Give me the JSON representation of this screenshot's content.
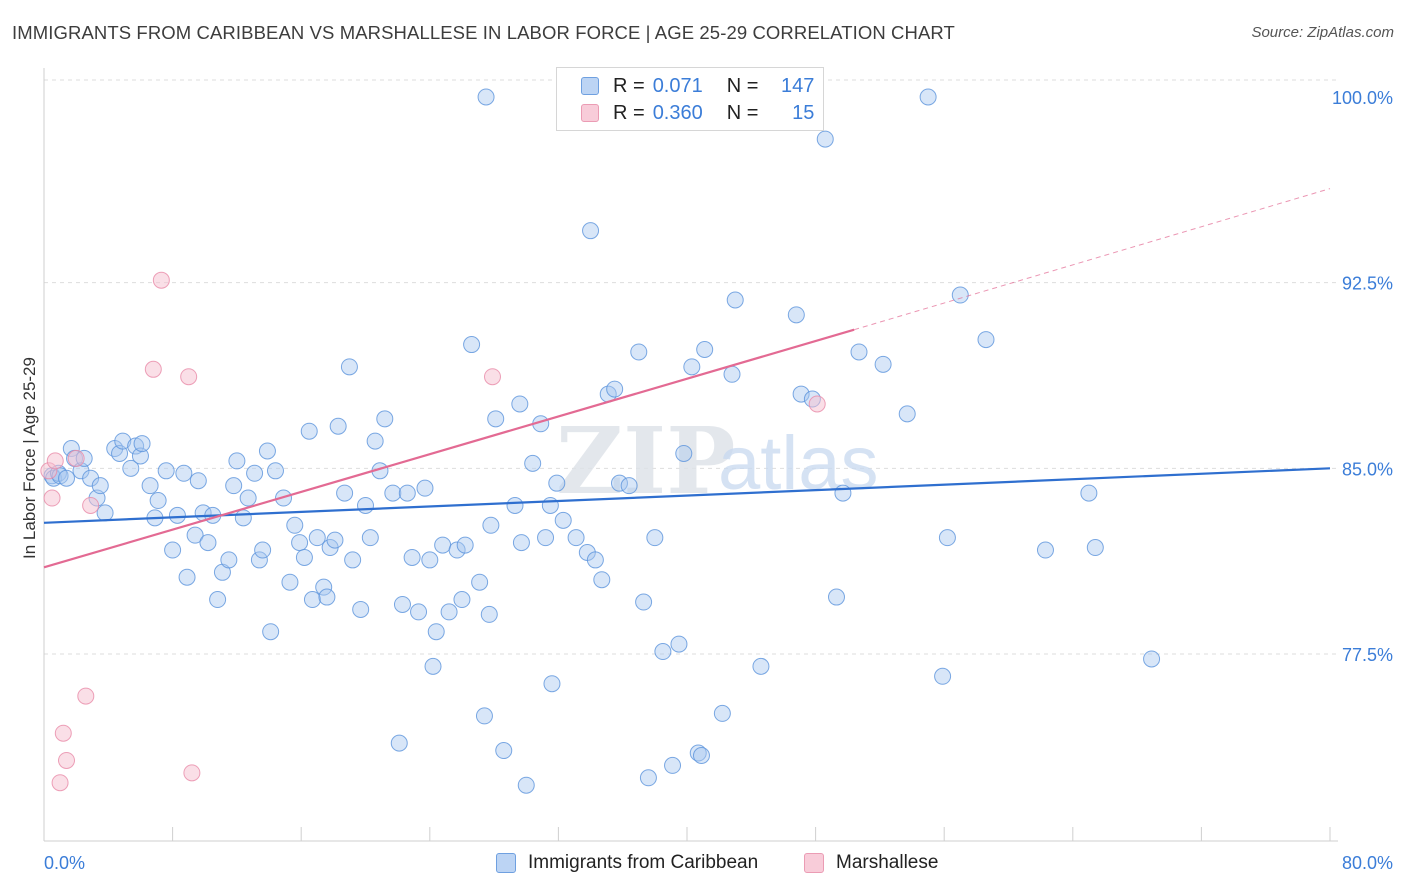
{
  "title": "IMMIGRANTS FROM CARIBBEAN VS MARSHALLESE IN LABOR FORCE | AGE 25-29 CORRELATION CHART",
  "source": "Source: ZipAtlas.com",
  "watermark": {
    "zip": "ZIP",
    "atlas": "atlas"
  },
  "colors": {
    "blue_fill": "#a9c8f0",
    "blue_stroke": "#5b93dc",
    "blue_line": "#2f6fcf",
    "pink_fill": "#f6bfd0",
    "pink_stroke": "#e88aa8",
    "pink_line": "#e36a93",
    "axis_text": "#3b7dd8",
    "grid": "#dddddd"
  },
  "legend": {
    "rows": [
      {
        "series": "Immigrants from Caribbean",
        "r_label": "R =",
        "r_value": "0.071",
        "n_label": "N =",
        "n_value": "147"
      },
      {
        "series": "Marshallese",
        "r_label": "R =",
        "r_value": "0.360",
        "n_label": "N =",
        "n_value": "15"
      }
    ]
  },
  "chart_data": {
    "type": "scatter",
    "title": "IMMIGRANTS FROM CARIBBEAN VS MARSHALLESE IN LABOR FORCE | AGE 25-29 CORRELATION CHART",
    "xlabel": "",
    "ylabel": "In Labor Force | Age 25-29",
    "xlim": [
      0,
      80
    ],
    "ylim": [
      70.5,
      101
    ],
    "x_tick_labels": [
      "0.0%",
      "80.0%"
    ],
    "y_ticks": [
      77.5,
      85.0,
      92.5,
      100.0
    ],
    "y_tick_labels": [
      "77.5%",
      "85.0%",
      "92.5%",
      "100.0%"
    ],
    "grid": true,
    "legend_position": "top-center",
    "series": [
      {
        "name": "Immigrants from Caribbean",
        "trend": {
          "x": [
            0,
            80
          ],
          "y": [
            82.8,
            85.0
          ]
        },
        "points": [
          [
            0.5,
            84.7
          ],
          [
            0.6,
            84.6
          ],
          [
            0.9,
            84.8
          ],
          [
            1.0,
            84.7
          ],
          [
            1.4,
            84.6
          ],
          [
            1.7,
            85.8
          ],
          [
            1.9,
            85.4
          ],
          [
            2.3,
            84.9
          ],
          [
            2.5,
            85.4
          ],
          [
            2.9,
            84.6
          ],
          [
            3.3,
            83.8
          ],
          [
            3.5,
            84.3
          ],
          [
            3.8,
            83.2
          ],
          [
            4.4,
            85.8
          ],
          [
            4.7,
            85.6
          ],
          [
            4.9,
            86.1
          ],
          [
            5.4,
            85.0
          ],
          [
            5.7,
            85.9
          ],
          [
            6.0,
            85.5
          ],
          [
            6.1,
            86.0
          ],
          [
            6.6,
            84.3
          ],
          [
            6.9,
            83.0
          ],
          [
            7.1,
            83.7
          ],
          [
            7.6,
            84.9
          ],
          [
            8.0,
            81.7
          ],
          [
            8.3,
            83.1
          ],
          [
            8.7,
            84.8
          ],
          [
            8.9,
            80.6
          ],
          [
            9.4,
            82.3
          ],
          [
            9.6,
            84.5
          ],
          [
            9.9,
            83.2
          ],
          [
            10.2,
            82.0
          ],
          [
            10.5,
            83.1
          ],
          [
            10.8,
            79.7
          ],
          [
            11.1,
            80.8
          ],
          [
            11.5,
            81.3
          ],
          [
            11.8,
            84.3
          ],
          [
            12.0,
            85.3
          ],
          [
            12.4,
            83.0
          ],
          [
            12.7,
            83.8
          ],
          [
            13.1,
            84.8
          ],
          [
            13.4,
            81.3
          ],
          [
            13.6,
            81.7
          ],
          [
            13.9,
            85.7
          ],
          [
            14.1,
            78.4
          ],
          [
            14.4,
            84.9
          ],
          [
            14.9,
            83.8
          ],
          [
            15.3,
            80.4
          ],
          [
            15.6,
            82.7
          ],
          [
            15.9,
            82.0
          ],
          [
            16.2,
            81.4
          ],
          [
            16.5,
            86.5
          ],
          [
            16.7,
            79.7
          ],
          [
            17.0,
            82.2
          ],
          [
            17.4,
            80.2
          ],
          [
            17.6,
            79.8
          ],
          [
            17.8,
            81.8
          ],
          [
            18.1,
            82.1
          ],
          [
            18.3,
            86.7
          ],
          [
            18.7,
            84.0
          ],
          [
            19.0,
            89.1
          ],
          [
            19.2,
            81.3
          ],
          [
            19.7,
            79.3
          ],
          [
            20.0,
            83.5
          ],
          [
            20.3,
            82.2
          ],
          [
            20.6,
            86.1
          ],
          [
            20.9,
            84.9
          ],
          [
            21.2,
            87.0
          ],
          [
            21.7,
            84.0
          ],
          [
            22.1,
            73.9
          ],
          [
            22.3,
            79.5
          ],
          [
            22.6,
            84.0
          ],
          [
            22.9,
            81.4
          ],
          [
            23.3,
            79.2
          ],
          [
            23.7,
            84.2
          ],
          [
            24.0,
            81.3
          ],
          [
            24.4,
            78.4
          ],
          [
            24.2,
            77.0
          ],
          [
            24.8,
            81.9
          ],
          [
            25.2,
            79.2
          ],
          [
            25.7,
            81.7
          ],
          [
            26.0,
            79.7
          ],
          [
            26.2,
            81.9
          ],
          [
            26.6,
            90.0
          ],
          [
            27.1,
            80.4
          ],
          [
            27.4,
            75.0
          ],
          [
            27.7,
            79.1
          ],
          [
            27.8,
            82.7
          ],
          [
            28.1,
            87.0
          ],
          [
            28.6,
            73.6
          ],
          [
            29.3,
            83.5
          ],
          [
            29.6,
            87.6
          ],
          [
            29.7,
            82.0
          ],
          [
            30.0,
            72.2
          ],
          [
            30.4,
            85.2
          ],
          [
            30.9,
            86.8
          ],
          [
            31.2,
            82.2
          ],
          [
            31.6,
            76.3
          ],
          [
            31.5,
            83.5
          ],
          [
            31.9,
            84.4
          ],
          [
            32.3,
            82.9
          ],
          [
            33.1,
            82.2
          ],
          [
            33.8,
            81.6
          ],
          [
            34.0,
            94.6
          ],
          [
            34.3,
            81.3
          ],
          [
            34.7,
            80.5
          ],
          [
            35.1,
            88.0
          ],
          [
            35.5,
            88.2
          ],
          [
            35.8,
            84.4
          ],
          [
            36.4,
            84.3
          ],
          [
            37.0,
            89.7
          ],
          [
            37.3,
            79.6
          ],
          [
            37.6,
            72.5
          ],
          [
            38.0,
            82.2
          ],
          [
            38.5,
            77.6
          ],
          [
            39.1,
            73.0
          ],
          [
            39.5,
            77.9
          ],
          [
            39.8,
            85.6
          ],
          [
            40.3,
            89.1
          ],
          [
            40.7,
            73.5
          ],
          [
            40.9,
            73.4
          ],
          [
            41.1,
            89.8
          ],
          [
            42.2,
            75.1
          ],
          [
            42.8,
            88.8
          ],
          [
            43.0,
            91.8
          ],
          [
            44.6,
            77.0
          ],
          [
            46.8,
            91.2
          ],
          [
            47.1,
            88.0
          ],
          [
            47.8,
            87.8
          ],
          [
            48.6,
            98.3
          ],
          [
            49.3,
            79.8
          ],
          [
            49.7,
            84.0
          ],
          [
            50.7,
            89.7
          ],
          [
            52.2,
            89.2
          ],
          [
            53.7,
            87.2
          ],
          [
            55.0,
            100.0
          ],
          [
            55.9,
            76.6
          ],
          [
            56.2,
            82.2
          ],
          [
            57.0,
            92.0
          ],
          [
            58.6,
            90.2
          ],
          [
            62.3,
            81.7
          ],
          [
            65.0,
            84.0
          ],
          [
            65.4,
            81.8
          ],
          [
            68.9,
            77.3
          ],
          [
            27.5,
            100.0
          ]
        ]
      },
      {
        "name": "Marshallese",
        "trend": {
          "x": [
            0,
            50.4
          ],
          "y": [
            81.0,
            90.6
          ]
        },
        "trend_extended": {
          "x": [
            50.4,
            80
          ],
          "y": [
            90.6,
            96.3
          ]
        },
        "points": [
          [
            0.3,
            84.9
          ],
          [
            0.5,
            83.8
          ],
          [
            0.7,
            85.3
          ],
          [
            1.0,
            72.3
          ],
          [
            1.2,
            74.3
          ],
          [
            1.4,
            73.2
          ],
          [
            2.0,
            85.4
          ],
          [
            2.6,
            75.8
          ],
          [
            2.9,
            83.5
          ],
          [
            6.8,
            89.0
          ],
          [
            7.3,
            92.6
          ],
          [
            9.0,
            88.7
          ],
          [
            9.2,
            72.7
          ],
          [
            27.9,
            88.7
          ],
          [
            48.1,
            87.6
          ]
        ]
      }
    ]
  },
  "bottom_legend": {
    "caribbean": "Immigrants from Caribbean",
    "marshallese": "Marshallese"
  }
}
